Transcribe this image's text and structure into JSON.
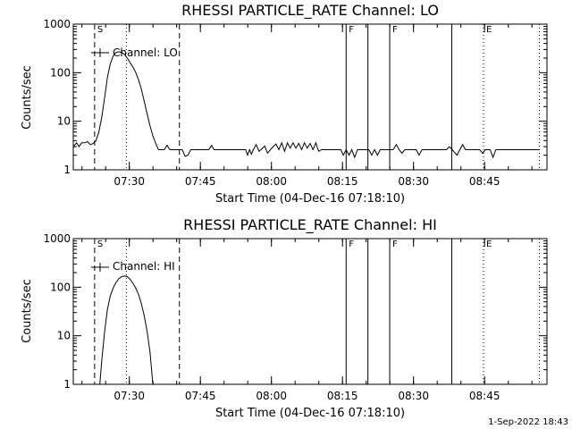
{
  "footer_date": "1-Sep-2022 18:43",
  "chart_data": [
    {
      "type": "line",
      "title": "RHESSI PARTICLE_RATE Channel: LO",
      "xlabel": "Start Time (04-Dec-16 07:18:10)",
      "ylabel": "Counts/sec",
      "legend": "Channel: LO",
      "legend_position": "top-left",
      "y_scale": "log",
      "ylim": [
        1,
        1000
      ],
      "y_ticks": [
        {
          "v": 1,
          "label": "1"
        },
        {
          "v": 10,
          "label": "10"
        },
        {
          "v": 100,
          "label": "100"
        },
        {
          "v": 1000,
          "label": "1000"
        }
      ],
      "x_unit": "minutes after 07:18:10",
      "xlim": [
        0,
        100
      ],
      "x_ticks": [
        {
          "v": 11.83,
          "label": "07:30"
        },
        {
          "v": 26.83,
          "label": "07:45"
        },
        {
          "v": 41.83,
          "label": "08:00"
        },
        {
          "v": 56.83,
          "label": "08:15"
        },
        {
          "v": 71.83,
          "label": "08:30"
        },
        {
          "v": 86.83,
          "label": "08:45"
        }
      ],
      "markers": [
        {
          "type": "dashed",
          "x": 4.5,
          "label": "S"
        },
        {
          "type": "dotted",
          "x": 11.2,
          "label": ""
        },
        {
          "type": "dashed",
          "x": 22.4,
          "label": ""
        },
        {
          "type": "solid",
          "x": 57.6,
          "label": "F"
        },
        {
          "type": "solid",
          "x": 62.2,
          "label": ""
        },
        {
          "type": "solid",
          "x": 66.8,
          "label": "F"
        },
        {
          "type": "solid",
          "x": 79.9,
          "label": ""
        },
        {
          "type": "dotted",
          "x": 86.6,
          "label": "E"
        },
        {
          "type": "dotted",
          "x": 98.4,
          "label": ""
        }
      ],
      "series": [
        {
          "points": [
            [
              0,
              3.0
            ],
            [
              0.7,
              3.6
            ],
            [
              1.2,
              3.0
            ],
            [
              1.8,
              3.6
            ],
            [
              2.4,
              3.6
            ],
            [
              3.0,
              3.8
            ],
            [
              3.6,
              3.3
            ],
            [
              4.2,
              3.5
            ],
            [
              4.8,
              4.0
            ],
            [
              5.4,
              6
            ],
            [
              6.0,
              12
            ],
            [
              6.6,
              30
            ],
            [
              7.2,
              80
            ],
            [
              7.8,
              150
            ],
            [
              8.4,
              220
            ],
            [
              9.0,
              260
            ],
            [
              9.6,
              270
            ],
            [
              10.2,
              260
            ],
            [
              10.8,
              240
            ],
            [
              11.4,
              200
            ],
            [
              12.0,
              160
            ],
            [
              12.6,
              130
            ],
            [
              13.2,
              100
            ],
            [
              13.8,
              70
            ],
            [
              14.4,
              45
            ],
            [
              15.0,
              25
            ],
            [
              15.6,
              14
            ],
            [
              16.2,
              8
            ],
            [
              16.8,
              5
            ],
            [
              17.4,
              3.5
            ],
            [
              18.0,
              2.6
            ],
            [
              19.2,
              2.6
            ],
            [
              19.8,
              3.2
            ],
            [
              20.4,
              2.6
            ],
            [
              21.0,
              2.6
            ],
            [
              22.0,
              2.6
            ],
            [
              23.0,
              2.6
            ],
            [
              23.6,
              1.9
            ],
            [
              24.2,
              2.0
            ],
            [
              24.8,
              2.6
            ],
            [
              26.5,
              2.6
            ],
            [
              27.5,
              2.6
            ],
            [
              28.6,
              2.6
            ],
            [
              29.2,
              3.2
            ],
            [
              29.7,
              2.6
            ],
            [
              31,
              2.6
            ],
            [
              33,
              2.6
            ],
            [
              35,
              2.6
            ],
            [
              36.4,
              2.6
            ],
            [
              36.8,
              2.0
            ],
            [
              37.2,
              2.6
            ],
            [
              37.6,
              2.1
            ],
            [
              38.0,
              2.6
            ],
            [
              38.6,
              3.3
            ],
            [
              39.2,
              2.4
            ],
            [
              39.8,
              2.7
            ],
            [
              40.4,
              3.1
            ],
            [
              41.0,
              2.2
            ],
            [
              41.6,
              2.6
            ],
            [
              42.2,
              3.0
            ],
            [
              42.8,
              3.4
            ],
            [
              43.4,
              2.6
            ],
            [
              44.0,
              3.6
            ],
            [
              44.6,
              2.4
            ],
            [
              45.2,
              3.6
            ],
            [
              45.8,
              2.8
            ],
            [
              46.4,
              3.6
            ],
            [
              47.0,
              2.8
            ],
            [
              47.6,
              3.5
            ],
            [
              48.2,
              2.6
            ],
            [
              48.8,
              3.6
            ],
            [
              49.4,
              2.8
            ],
            [
              50.0,
              3.5
            ],
            [
              50.6,
              2.6
            ],
            [
              51.2,
              3.6
            ],
            [
              51.8,
              2.4
            ],
            [
              52.4,
              2.6
            ],
            [
              53,
              2.6
            ],
            [
              55,
              2.6
            ],
            [
              56.5,
              2.6
            ],
            [
              57.0,
              2.0
            ],
            [
              57.6,
              2.6
            ],
            [
              58.2,
              2.0
            ],
            [
              58.8,
              2.6
            ],
            [
              59.4,
              1.8
            ],
            [
              60.0,
              2.6
            ],
            [
              61,
              2.6
            ],
            [
              62.4,
              2.6
            ],
            [
              63.0,
              2.0
            ],
            [
              63.6,
              2.6
            ],
            [
              64.2,
              2.0
            ],
            [
              64.8,
              2.6
            ],
            [
              66,
              2.6
            ],
            [
              67.5,
              2.6
            ],
            [
              68.2,
              3.3
            ],
            [
              68.8,
              2.6
            ],
            [
              69.4,
              2.2
            ],
            [
              70.0,
              2.6
            ],
            [
              71,
              2.6
            ],
            [
              72.4,
              2.6
            ],
            [
              73.0,
              2.0
            ],
            [
              73.6,
              2.6
            ],
            [
              75,
              2.6
            ],
            [
              77,
              2.6
            ],
            [
              78.8,
              2.6
            ],
            [
              79.4,
              3.0
            ],
            [
              80.0,
              2.6
            ],
            [
              81.0,
              2.0
            ],
            [
              81.6,
              2.6
            ],
            [
              82.2,
              3.3
            ],
            [
              82.8,
              2.6
            ],
            [
              84,
              2.6
            ],
            [
              85.8,
              2.6
            ],
            [
              86.4,
              2.2
            ],
            [
              87.0,
              2.6
            ],
            [
              88.0,
              2.6
            ],
            [
              88.6,
              1.8
            ],
            [
              89.2,
              2.6
            ],
            [
              91,
              2.6
            ],
            [
              93,
              2.6
            ],
            [
              95,
              2.6
            ],
            [
              98.4,
              2.6
            ]
          ]
        }
      ]
    },
    {
      "type": "line",
      "title": "RHESSI PARTICLE_RATE Channel: HI",
      "xlabel": "Start Time (04-Dec-16 07:18:10)",
      "ylabel": "Counts/sec",
      "legend": "Channel: HI",
      "legend_position": "top-left",
      "y_scale": "log",
      "ylim": [
        1,
        1000
      ],
      "y_ticks": [
        {
          "v": 1,
          "label": "1"
        },
        {
          "v": 10,
          "label": "10"
        },
        {
          "v": 100,
          "label": "100"
        },
        {
          "v": 1000,
          "label": "1000"
        }
      ],
      "x_unit": "minutes after 07:18:10",
      "xlim": [
        0,
        100
      ],
      "x_ticks": [
        {
          "v": 11.83,
          "label": "07:30"
        },
        {
          "v": 26.83,
          "label": "07:45"
        },
        {
          "v": 41.83,
          "label": "08:00"
        },
        {
          "v": 56.83,
          "label": "08:15"
        },
        {
          "v": 71.83,
          "label": "08:30"
        },
        {
          "v": 86.83,
          "label": "08:45"
        }
      ],
      "markers": [
        {
          "type": "dashed",
          "x": 4.5,
          "label": "S"
        },
        {
          "type": "dotted",
          "x": 11.2,
          "label": ""
        },
        {
          "type": "dashed",
          "x": 22.4,
          "label": ""
        },
        {
          "type": "solid",
          "x": 57.6,
          "label": "F"
        },
        {
          "type": "solid",
          "x": 62.2,
          "label": ""
        },
        {
          "type": "solid",
          "x": 66.8,
          "label": "F"
        },
        {
          "type": "solid",
          "x": 79.9,
          "label": ""
        },
        {
          "type": "dotted",
          "x": 86.6,
          "label": "E"
        },
        {
          "type": "dotted",
          "x": 98.4,
          "label": ""
        }
      ],
      "series": [
        {
          "points": [
            [
              5.6,
              1.0
            ],
            [
              6.0,
              3
            ],
            [
              6.6,
              12
            ],
            [
              7.2,
              35
            ],
            [
              7.8,
              65
            ],
            [
              8.4,
              95
            ],
            [
              9.0,
              125
            ],
            [
              9.6,
              150
            ],
            [
              10.2,
              165
            ],
            [
              10.8,
              170
            ],
            [
              11.4,
              165
            ],
            [
              12.0,
              145
            ],
            [
              12.6,
              120
            ],
            [
              13.2,
              95
            ],
            [
              13.8,
              70
            ],
            [
              14.4,
              45
            ],
            [
              15.0,
              25
            ],
            [
              15.6,
              12
            ],
            [
              16.2,
              4.5
            ],
            [
              16.8,
              1.0
            ]
          ]
        }
      ]
    }
  ]
}
